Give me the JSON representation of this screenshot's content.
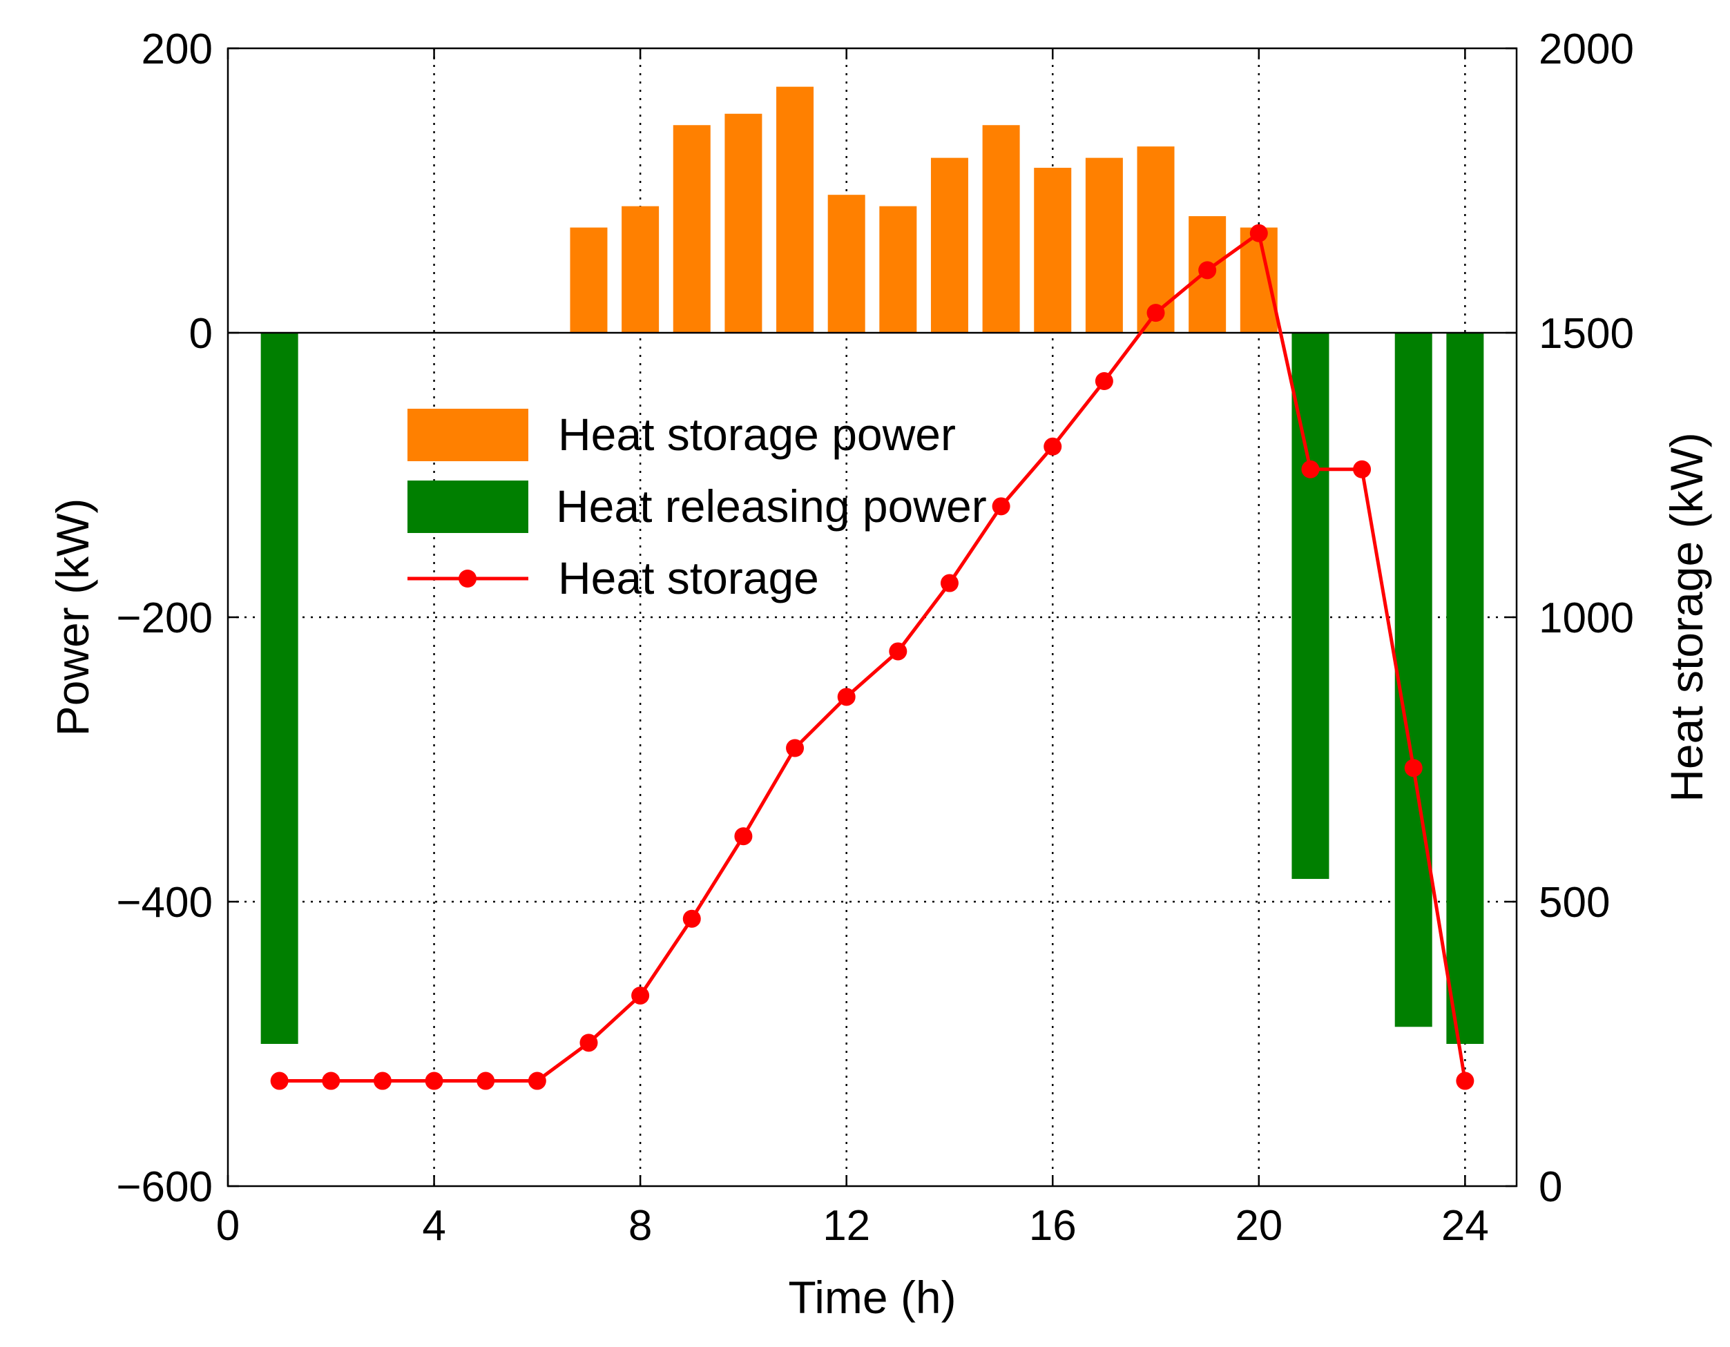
{
  "chart_data": {
    "type": "bar+line",
    "title": "",
    "xlabel": "Time (h)",
    "ylabel_left": "Power (kW)",
    "ylabel_right": "Heat storage (kW)",
    "xlim": [
      0,
      25
    ],
    "ylim_left": [
      -600,
      200
    ],
    "ylim_right": [
      0,
      2000
    ],
    "xticks": [
      0,
      4,
      8,
      12,
      16,
      20,
      24
    ],
    "xtick_labels": [
      "0",
      "4",
      "8",
      "12",
      "16",
      "20",
      "24"
    ],
    "yticks_left": [
      200,
      0,
      -200,
      -400,
      -600
    ],
    "ytick_labels_left": [
      "200",
      "0",
      "−200",
      "−400",
      "−600"
    ],
    "yticks_right": [
      2000,
      1500,
      1000,
      500,
      0
    ],
    "ytick_labels_right": [
      "2000",
      "1500",
      "1000",
      "500",
      "0"
    ],
    "grid": true,
    "legend_position": "upper-left-center",
    "series": [
      {
        "name": "Heat storage power",
        "kind": "bar",
        "axis": "left",
        "color": "#ff8000",
        "x": [
          7,
          8,
          9,
          10,
          11,
          12,
          13,
          14,
          15,
          16,
          17,
          18,
          19,
          20
        ],
        "values": [
          74,
          89,
          146,
          154,
          173,
          97,
          89,
          123,
          146,
          116,
          123,
          131,
          82,
          74
        ]
      },
      {
        "name": "Heat releasing power",
        "kind": "bar",
        "axis": "left",
        "color": "#007f00",
        "x": [
          1,
          21,
          23,
          24
        ],
        "values": [
          -500,
          -384,
          -488,
          -500
        ]
      },
      {
        "name": "Heat storage",
        "kind": "line",
        "axis": "right",
        "color": "#ff0000",
        "marker": "circle",
        "x": [
          1,
          2,
          3,
          4,
          5,
          6,
          7,
          8,
          9,
          10,
          11,
          12,
          13,
          14,
          15,
          16,
          17,
          18,
          19,
          20,
          21,
          22,
          23,
          24
        ],
        "values": [
          185,
          185,
          185,
          185,
          185,
          185,
          252,
          335,
          470,
          615,
          770,
          860,
          940,
          1060,
          1195,
          1300,
          1415,
          1535,
          1610,
          1675,
          1260,
          1260,
          735,
          185
        ]
      }
    ]
  }
}
